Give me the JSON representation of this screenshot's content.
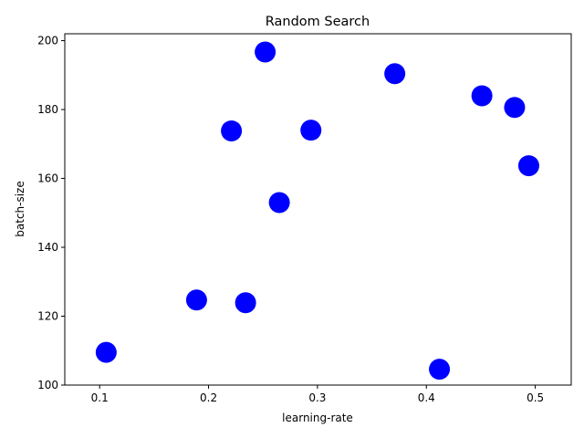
{
  "chart_data": {
    "type": "scatter",
    "title": "Random Search",
    "xlabel": "learning-rate",
    "ylabel": "batch-size",
    "xlim": [
      0.068,
      0.533
    ],
    "ylim": [
      100,
      202
    ],
    "xticks": [
      0.1,
      0.2,
      0.3,
      0.4,
      0.5
    ],
    "yticks": [
      100,
      120,
      140,
      160,
      180,
      200
    ],
    "grid": false,
    "marker_color": "#0000ff",
    "series": [
      {
        "points": [
          {
            "x": 0.106,
            "y": 109.5
          },
          {
            "x": 0.189,
            "y": 124.7
          },
          {
            "x": 0.221,
            "y": 173.8
          },
          {
            "x": 0.234,
            "y": 123.9
          },
          {
            "x": 0.252,
            "y": 196.7
          },
          {
            "x": 0.265,
            "y": 153.0
          },
          {
            "x": 0.294,
            "y": 174.0
          },
          {
            "x": 0.371,
            "y": 190.4
          },
          {
            "x": 0.412,
            "y": 104.6
          },
          {
            "x": 0.451,
            "y": 184.0
          },
          {
            "x": 0.481,
            "y": 180.6
          },
          {
            "x": 0.494,
            "y": 163.7
          }
        ]
      }
    ]
  }
}
